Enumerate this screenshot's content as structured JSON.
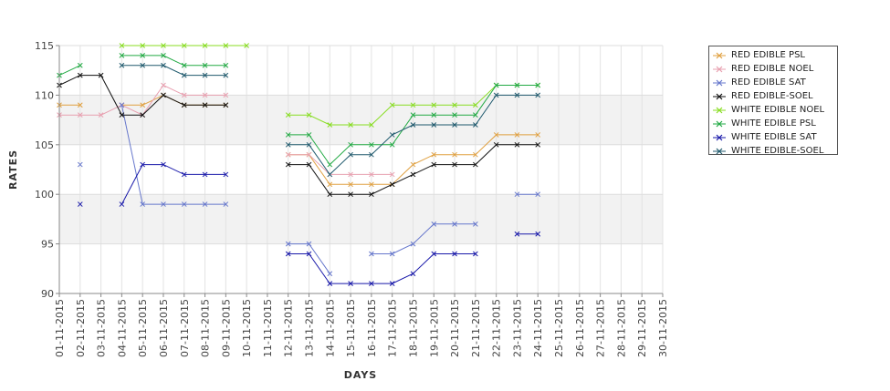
{
  "chart_data": {
    "type": "line",
    "xlabel": "DAYS",
    "ylabel": "RATES",
    "ylim": [
      90,
      115
    ],
    "yticks": [
      90,
      95,
      100,
      105,
      110,
      115
    ],
    "legend_position": "top-right",
    "background_bands": "alternating light grey every 5 units",
    "categories": [
      "01-11-2015",
      "02-11-2015",
      "03-11-2015",
      "04-11-2015",
      "05-11-2015",
      "06-11-2015",
      "07-11-2015",
      "08-11-2015",
      "09-11-2015",
      "10-11-2015",
      "11-11-2015",
      "12-11-2015",
      "13-11-2015",
      "14-11-2015",
      "15-11-2015",
      "16-11-2015",
      "17-11-2015",
      "18-11-2015",
      "19-11-2015",
      "20-11-2015",
      "21-11-2015",
      "22-11-2015",
      "23-11-2015",
      "24-11-2015",
      "25-11-2015",
      "26-11-2015",
      "27-11-2015",
      "28-11-2015",
      "29-11-2015",
      "30-11-2015"
    ],
    "series": [
      {
        "name": "RED EDIBLE  PSL",
        "color": "#e0a040",
        "values": [
          109,
          109,
          null,
          109,
          109,
          110,
          109,
          109,
          109,
          null,
          null,
          104,
          104,
          101,
          101,
          101,
          101,
          103,
          104,
          104,
          104,
          106,
          106,
          106,
          null,
          null,
          null,
          null,
          null,
          null
        ]
      },
      {
        "name": "RED EDIBLE NOEL",
        "color": "#e8a0b0",
        "values": [
          108,
          108,
          108,
          109,
          108,
          111,
          110,
          110,
          110,
          null,
          null,
          104,
          104,
          102,
          102,
          102,
          102,
          null,
          null,
          null,
          null,
          null,
          null,
          null,
          null,
          null,
          null,
          null,
          null,
          null
        ]
      },
      {
        "name": "RED EDIBLE SAT",
        "color": "#6677cc",
        "values": [
          null,
          103,
          null,
          109,
          99,
          99,
          99,
          99,
          99,
          null,
          null,
          95,
          95,
          92,
          null,
          94,
          94,
          95,
          97,
          97,
          97,
          null,
          100,
          100,
          null,
          null,
          null,
          null,
          null,
          null
        ]
      },
      {
        "name": "RED EDIBLE-SOEL",
        "color": "#111111",
        "values": [
          111,
          112,
          112,
          108,
          108,
          110,
          109,
          109,
          109,
          null,
          null,
          103,
          103,
          100,
          100,
          100,
          101,
          102,
          103,
          103,
          103,
          105,
          105,
          105,
          null,
          null,
          null,
          null,
          null,
          null
        ]
      },
      {
        "name": "WHITE EDIBLE NOEL",
        "color": "#88dd22",
        "values": [
          null,
          null,
          null,
          115,
          115,
          115,
          115,
          115,
          115,
          115,
          null,
          108,
          108,
          107,
          107,
          107,
          109,
          109,
          109,
          109,
          109,
          111,
          111,
          111,
          null,
          null,
          null,
          null,
          null,
          null
        ]
      },
      {
        "name": "WHITE EDIBLE PSL",
        "color": "#22aa44",
        "values": [
          112,
          113,
          null,
          114,
          114,
          114,
          113,
          113,
          113,
          null,
          null,
          106,
          106,
          103,
          105,
          105,
          105,
          108,
          108,
          108,
          108,
          111,
          111,
          111,
          null,
          null,
          null,
          null,
          null,
          null
        ]
      },
      {
        "name": "WHITE EDIBLE SAT",
        "color": "#1a1aaa",
        "values": [
          null,
          99,
          null,
          99,
          103,
          103,
          102,
          102,
          102,
          null,
          null,
          94,
          94,
          91,
          91,
          91,
          91,
          92,
          94,
          94,
          94,
          null,
          96,
          96,
          null,
          null,
          null,
          null,
          null,
          null
        ]
      },
      {
        "name": "WHITE EDIBLE-SOEL",
        "color": "#205a6e",
        "values": [
          null,
          null,
          null,
          113,
          113,
          113,
          112,
          112,
          112,
          null,
          null,
          105,
          105,
          102,
          104,
          104,
          106,
          107,
          107,
          107,
          107,
          110,
          110,
          110,
          null,
          null,
          null,
          null,
          null,
          null
        ]
      }
    ]
  }
}
